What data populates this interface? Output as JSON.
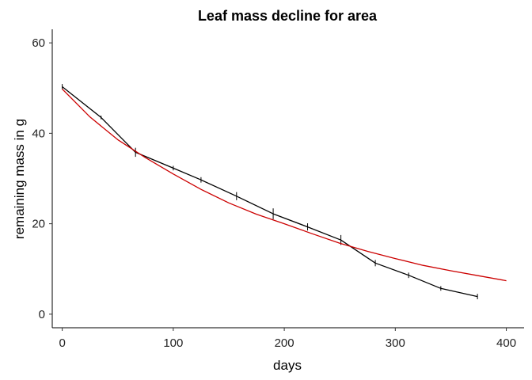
{
  "chart_data": {
    "type": "line",
    "title": "Leaf mass decline for area",
    "xlabel": "days",
    "ylabel": "remaining mass in g",
    "xlim": [
      -9,
      416
    ],
    "ylim": [
      -3,
      63
    ],
    "xticks": [
      0,
      100,
      200,
      300,
      400
    ],
    "yticks": [
      0,
      20,
      40,
      60
    ],
    "grid": false,
    "series": [
      {
        "kind": "observed",
        "color": "#000000",
        "error_bars": true,
        "x": [
          0,
          35,
          66,
          100,
          125,
          157,
          190,
          221,
          251,
          282,
          312,
          341,
          374
        ],
        "y": [
          50.3,
          43.5,
          35.8,
          32.3,
          29.7,
          26.1,
          22.2,
          19.3,
          16.4,
          11.3,
          8.6,
          5.7,
          3.9
        ],
        "err": [
          0.6,
          0.4,
          1.0,
          0.5,
          0.6,
          0.9,
          1.2,
          0.8,
          1.1,
          0.7,
          0.6,
          0.5,
          0.6
        ]
      },
      {
        "kind": "fitted",
        "color": "#cc0000",
        "error_bars": false,
        "x": [
          0,
          25,
          50,
          75,
          100,
          125,
          150,
          175,
          200,
          225,
          250,
          275,
          300,
          325,
          350,
          375,
          400
        ],
        "y": [
          49.8,
          43.6,
          38.6,
          34.6,
          31.0,
          27.6,
          24.6,
          22.1,
          20.0,
          17.8,
          15.7,
          13.9,
          12.3,
          10.8,
          9.6,
          8.5,
          7.4
        ]
      }
    ]
  }
}
